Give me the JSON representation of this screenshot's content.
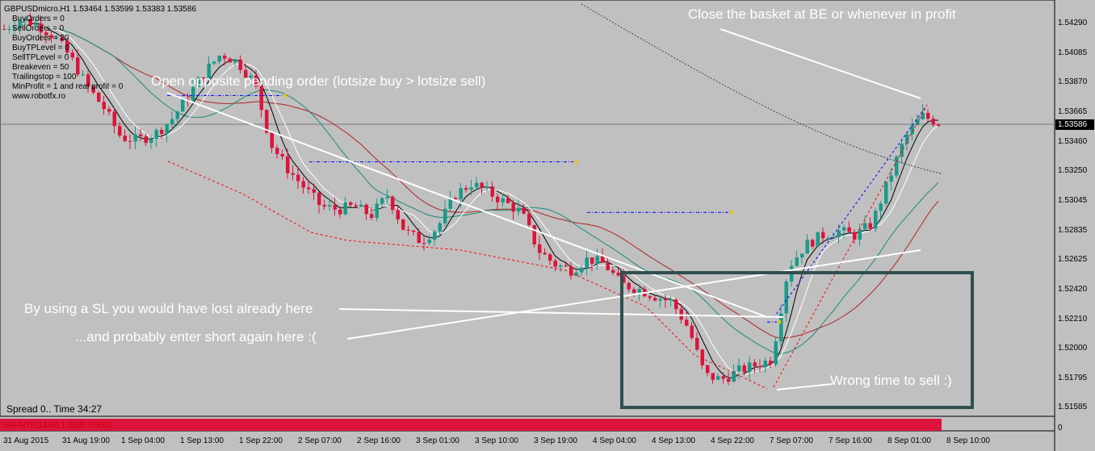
{
  "header": {
    "symbol_line": "GBPUSDmicro,H1  1.53464 1.53599 1.53383 1.53586",
    "params": [
      "BuyOrders = 0",
      "SellOrders = 0",
      "BuyOrders = 20",
      "BuyTPLevel = 0",
      "SellTPLevel = 0",
      "Breakeven = 50",
      "Trailingstop = 100",
      "MinProfit = 1 and real profit = 0",
      "www.robotfx.ro"
    ]
  },
  "annotations": {
    "opposite": "Open opposite pending order (lotsize buy > lotsize sell)",
    "close_basket": "Close the basket at BE or whenever in profit",
    "sl_lost": "By using a SL you would have lost already here",
    "enter_short": "...and probably enter short again here :(",
    "wrong_time": "Wrong time to sell :)"
  },
  "footer": {
    "spread": "Spread 0.. Time 34:27",
    "indicator": "HA-MTF(1440) 1.0000 0.0000",
    "zero_label": "0"
  },
  "colors": {
    "background": "#c0c0c0",
    "bull": "#1a9a8a",
    "bear": "#dc143c",
    "annotation": "#ffffff",
    "box": "#2f4f4f",
    "pending": "#0000ff"
  },
  "chart_data": {
    "type": "candlestick",
    "symbol": "GBPUSDmicro",
    "timeframe": "H1",
    "current_price": "1.53586",
    "y_ticks": [
      "1.54290",
      "1.54085",
      "1.53870",
      "1.53665",
      "1.53460",
      "1.53250",
      "1.53045",
      "1.52835",
      "1.52625",
      "1.52420",
      "1.52210",
      "1.52000",
      "1.51795",
      "1.51585"
    ],
    "x_ticks": [
      "31 Aug 2015",
      "31 Aug 19:00",
      "1 Sep 04:00",
      "1 Sep 13:00",
      "1 Sep 22:00",
      "2 Sep 07:00",
      "2 Sep 16:00",
      "3 Sep 01:00",
      "3 Sep 10:00",
      "3 Sep 19:00",
      "4 Sep 04:00",
      "4 Sep 13:00",
      "4 Sep 22:00",
      "7 Sep 07:00",
      "7 Sep 16:00",
      "8 Sep 01:00",
      "8 Sep 10:00"
    ],
    "ylim": [
      1.5158,
      1.5448
    ],
    "close_path": [
      1.5425,
      1.5432,
      1.5428,
      1.542,
      1.5405,
      1.5385,
      1.537,
      1.535,
      1.5348,
      1.5352,
      1.5362,
      1.5378,
      1.5395,
      1.5408,
      1.5402,
      1.5388,
      1.5345,
      1.5328,
      1.5315,
      1.5302,
      1.53,
      1.5302,
      1.5296,
      1.531,
      1.5285,
      1.5278,
      1.5288,
      1.531,
      1.5318,
      1.5312,
      1.5305,
      1.5298,
      1.5272,
      1.5262,
      1.5258,
      1.5266,
      1.5262,
      1.5248,
      1.5245,
      1.524,
      1.5236,
      1.5218,
      1.5185,
      1.5182,
      1.5188,
      1.5192,
      1.5196,
      1.526,
      1.5275,
      1.5282,
      1.5285,
      1.5282,
      1.529,
      1.532,
      1.535,
      1.5365,
      1.536
    ],
    "pending_orders": [
      {
        "price": 1.5379
      },
      {
        "price": 1.5333
      },
      {
        "price": 1.5298
      },
      {
        "price": 1.5222
      }
    ]
  }
}
